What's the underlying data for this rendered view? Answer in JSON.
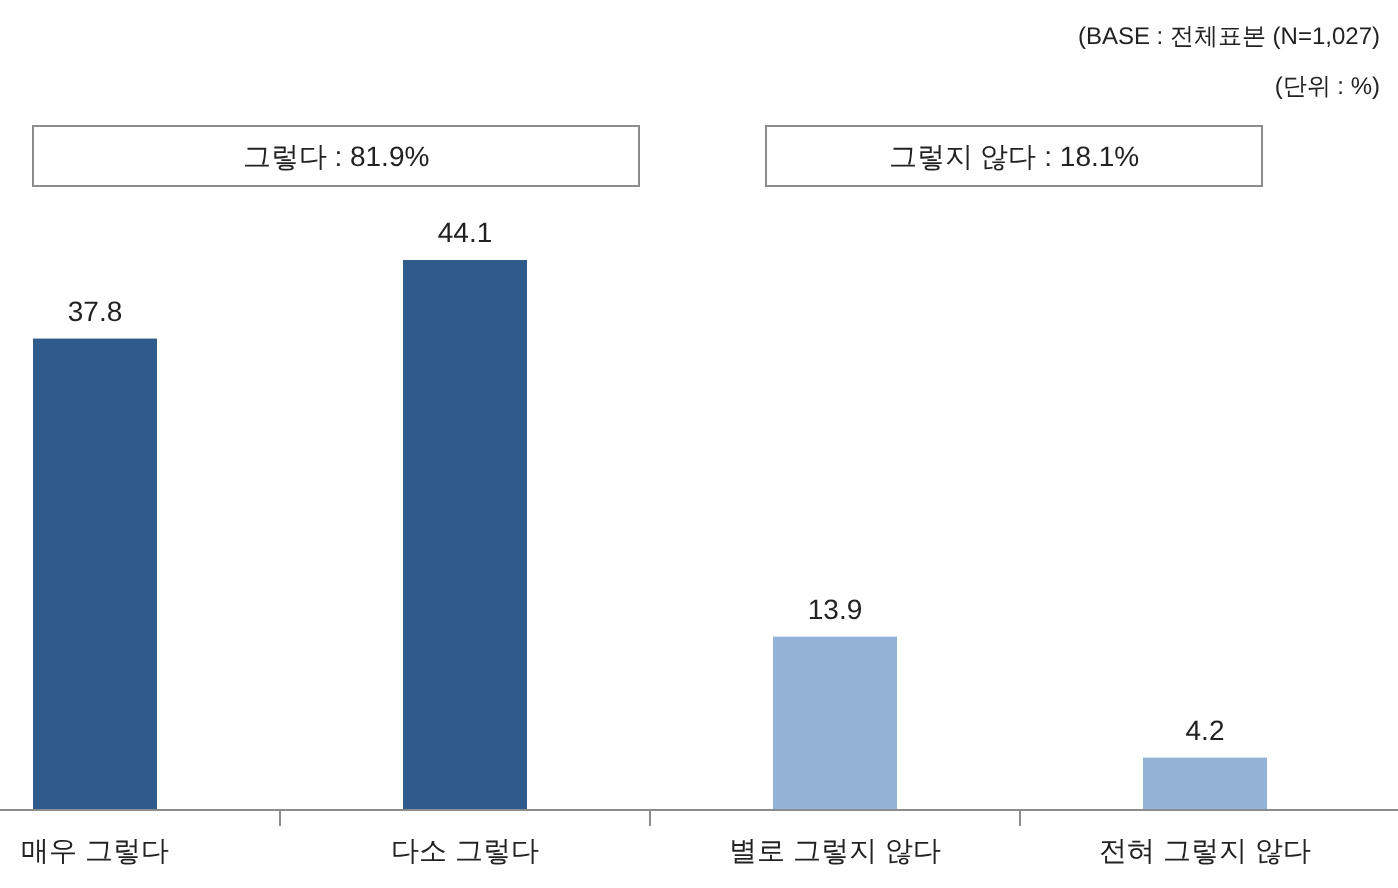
{
  "chart_data": {
    "type": "bar",
    "categories": [
      "매우 그렇다",
      "다소 그렇다",
      "별로 그렇지 않다",
      "전혀 그렇지 않다"
    ],
    "values": [
      37.8,
      44.1,
      13.9,
      4.2
    ],
    "colors": [
      "#2e5a8c",
      "#2e5a8c",
      "#95b3d7",
      "#95b3d7"
    ],
    "data_labels": true,
    "annotations": [
      "(BASE : 전체표본 (N=1,027)",
      "(단위 : %)",
      "그렇다 : 81.9%",
      "그렇지 않다 : 18.1%"
    ]
  }
}
